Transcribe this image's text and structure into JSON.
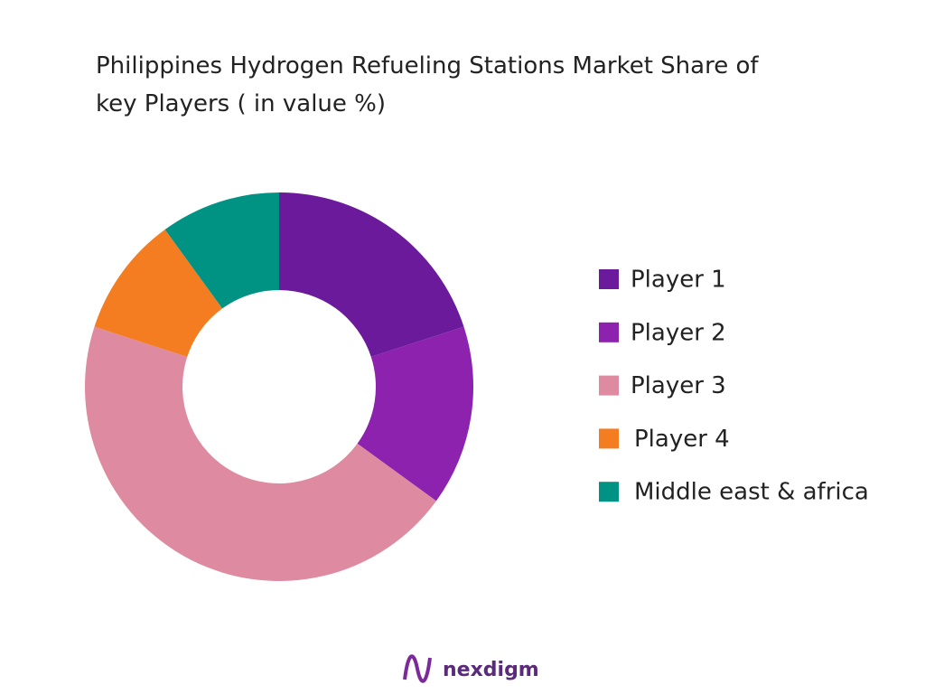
{
  "chart_data": {
    "type": "donut",
    "title": "Philippines Hydrogen Refueling Stations Market Share of key Players ( in value %)",
    "categories": [
      "Player 1",
      "Player 2",
      "Player 3",
      "Player 4",
      "Middle east & africa"
    ],
    "values": [
      20,
      15,
      45,
      10,
      10
    ],
    "colors": [
      "#6a1a9a",
      "#8c22ad",
      "#de8aa0",
      "#f47d21",
      "#009384"
    ],
    "legend": "right"
  },
  "logo": "nexdigm"
}
